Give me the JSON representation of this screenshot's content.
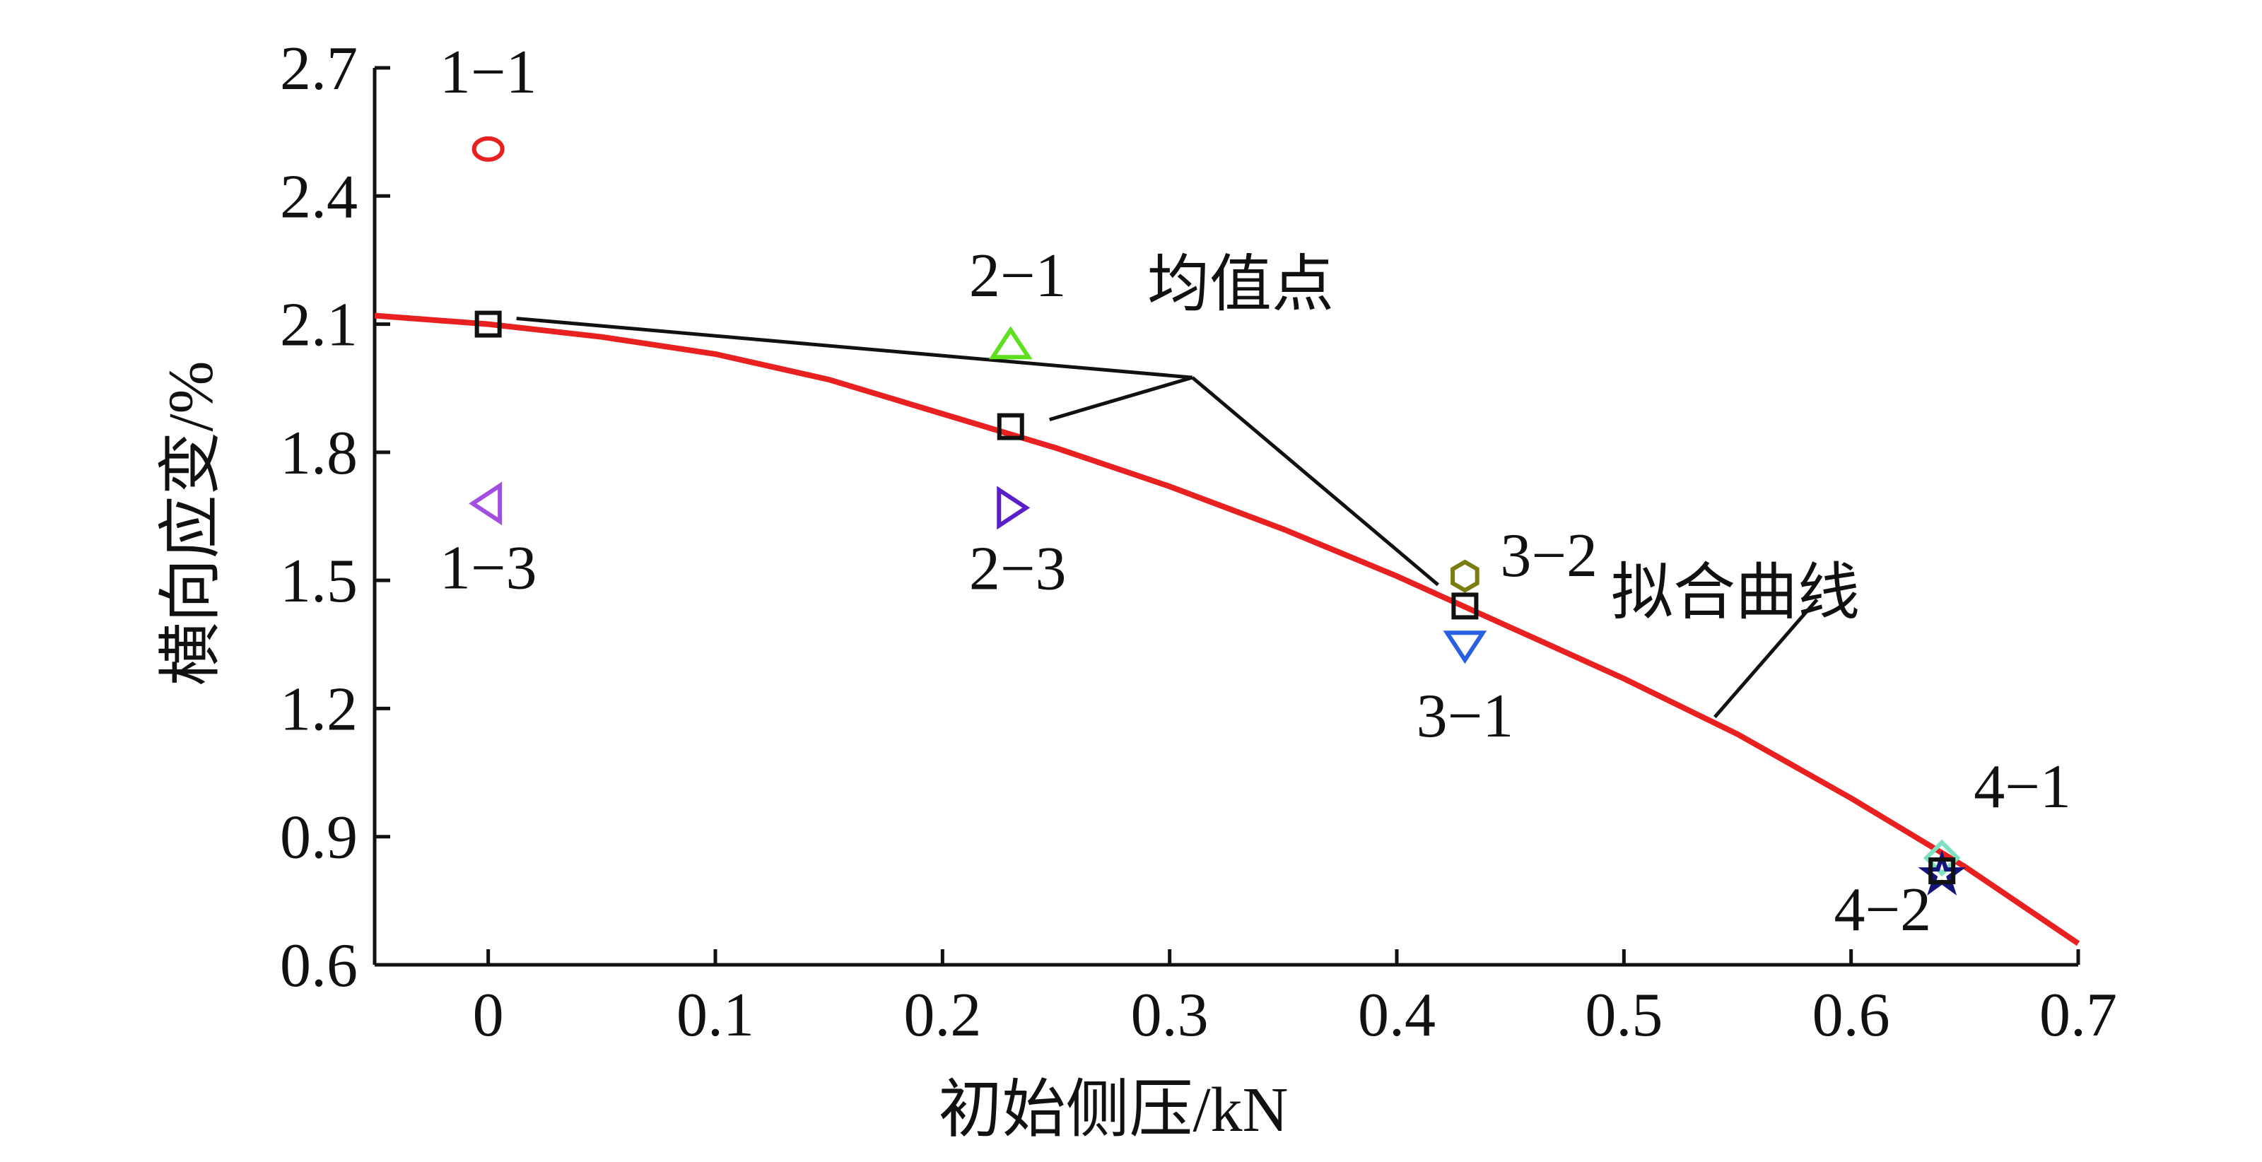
{
  "chart_data": {
    "type": "scatter",
    "xlabel": "初始侧压/kN",
    "ylabel": "横向应变/%",
    "xlim": [
      -0.05,
      0.7
    ],
    "ylim": [
      0.6,
      2.7
    ],
    "x_ticks": [
      "0",
      "0.1",
      "0.2",
      "0.3",
      "0.4",
      "0.5",
      "0.6",
      "0.7"
    ],
    "x_tick_values": [
      0,
      0.1,
      0.2,
      0.3,
      0.4,
      0.5,
      0.6,
      0.7
    ],
    "y_ticks": [
      "0.6",
      "0.9",
      "1.2",
      "1.5",
      "1.8",
      "2.1",
      "2.4",
      "2.7"
    ],
    "y_tick_values": [
      0.6,
      0.9,
      1.2,
      1.5,
      1.8,
      2.1,
      2.4,
      2.7
    ],
    "grid": false,
    "points": [
      {
        "label": "1−1",
        "x": 0.0,
        "y": 2.51,
        "marker": "circle",
        "color": "#e8201f"
      },
      {
        "label": "1−3",
        "x": 0.0,
        "y": 1.68,
        "marker": "triangle-left",
        "color": "#a24ee0"
      },
      {
        "label": "2−1",
        "x": 0.23,
        "y": 2.05,
        "marker": "triangle-up",
        "color": "#5ee01e"
      },
      {
        "label": "2−3",
        "x": 0.23,
        "y": 1.67,
        "marker": "triangle-right",
        "color": "#5a1fc8"
      },
      {
        "label": "3−2",
        "x": 0.43,
        "y": 1.51,
        "marker": "hexagon",
        "color": "#7a7d10"
      },
      {
        "label": "3−1",
        "x": 0.43,
        "y": 1.35,
        "marker": "triangle-down",
        "color": "#2860e0"
      },
      {
        "label": "4−1",
        "x": 0.64,
        "y": 0.85,
        "marker": "diamond",
        "color": "#7ee0c0"
      },
      {
        "label": "4−2",
        "x": 0.64,
        "y": 0.81,
        "marker": "star",
        "color": "#14147a"
      }
    ],
    "mean_points": {
      "label": "均值点",
      "marker": "square",
      "color": "#111111",
      "x": [
        0.0,
        0.23,
        0.43,
        0.64
      ],
      "y": [
        2.1,
        1.86,
        1.44,
        0.82
      ]
    },
    "fit_curve": {
      "label": "拟合曲线",
      "color": "#e8201f",
      "x": [
        -0.05,
        0.0,
        0.05,
        0.1,
        0.15,
        0.2,
        0.25,
        0.3,
        0.35,
        0.4,
        0.45,
        0.5,
        0.55,
        0.6,
        0.65,
        0.7
      ],
      "y": [
        2.12,
        2.1,
        2.07,
        2.03,
        1.97,
        1.89,
        1.81,
        1.72,
        1.62,
        1.51,
        1.39,
        1.27,
        1.14,
        0.99,
        0.83,
        0.65
      ]
    }
  }
}
